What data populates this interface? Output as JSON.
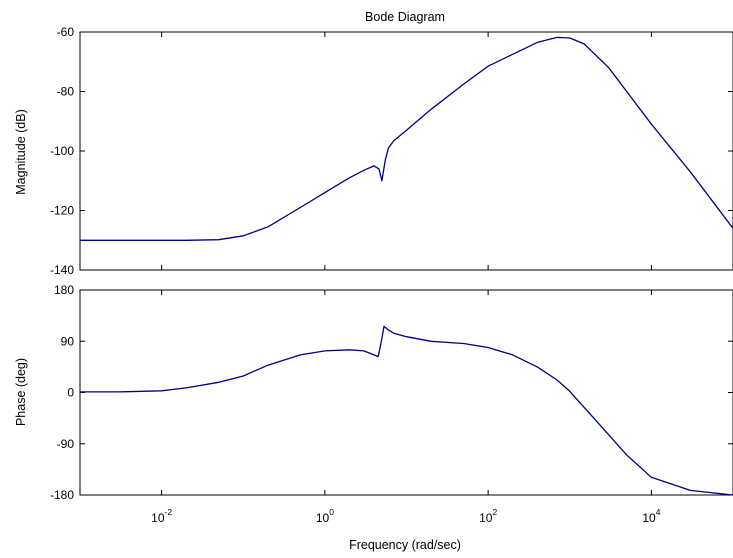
{
  "chart_data": {
    "type": "line",
    "title": "Bode Diagram",
    "xlabel": "Frequency  (rad/sec)",
    "x_scale": "log",
    "xlim": [
      0.001,
      100000
    ],
    "xticks": [
      0.01,
      1,
      100,
      10000
    ],
    "xtick_labels": [
      {
        "base": "10",
        "exp": "-2"
      },
      {
        "base": "10",
        "exp": "0"
      },
      {
        "base": "10",
        "exp": "2"
      },
      {
        "base": "10",
        "exp": "4"
      }
    ],
    "subplots": [
      {
        "name": "magnitude",
        "ylabel": "Magnitude (dB)",
        "ylim": [
          -140,
          -60
        ],
        "yticks": [
          -60,
          -80,
          -100,
          -120,
          -140
        ],
        "series": [
          {
            "color": "#00008b",
            "x": [
              0.001,
              0.003,
              0.01,
              0.02,
              0.05,
              0.1,
              0.2,
              0.5,
              1,
              2,
              3,
              4,
              4.6,
              5,
              5.5,
              6,
              7,
              10,
              20,
              50,
              100,
              200,
              400,
              700,
              1000,
              1500,
              3000,
              10000,
              30000,
              100000
            ],
            "y": [
              -130,
              -130,
              -130,
              -130,
              -129.8,
              -128.5,
              -125.5,
              -119,
              -114,
              -109,
              -106.5,
              -105,
              -106,
              -110,
              -103,
              -99,
              -96.5,
              -93,
              -86,
              -77.5,
              -71.5,
              -67.5,
              -63.5,
              -61.8,
              -62,
              -64,
              -72,
              -91,
              -107,
              -126
            ]
          }
        ]
      },
      {
        "name": "phase",
        "ylabel": "Phase (deg)",
        "ylim": [
          -180,
          180
        ],
        "yticks": [
          180,
          90,
          0,
          -90,
          -180
        ],
        "series": [
          {
            "color": "#00008b",
            "x": [
              0.001,
              0.003,
              0.01,
              0.02,
              0.05,
              0.1,
              0.2,
              0.5,
              1,
              2,
              3,
              4,
              4.5,
              5,
              5.3,
              6,
              7,
              10,
              20,
              50,
              100,
              200,
              400,
              700,
              1000,
              2000,
              5000,
              10000,
              30000,
              100000
            ],
            "y": [
              1,
              1,
              3,
              8,
              18,
              29,
              48,
              66,
              73,
              75,
              73,
              66,
              63,
              95,
              116,
              110,
              104,
              98,
              90,
              86,
              79,
              66,
              45,
              22,
              2,
              -46,
              -110,
              -149,
              -172,
              -180
            ]
          }
        ]
      }
    ],
    "grid": false
  }
}
